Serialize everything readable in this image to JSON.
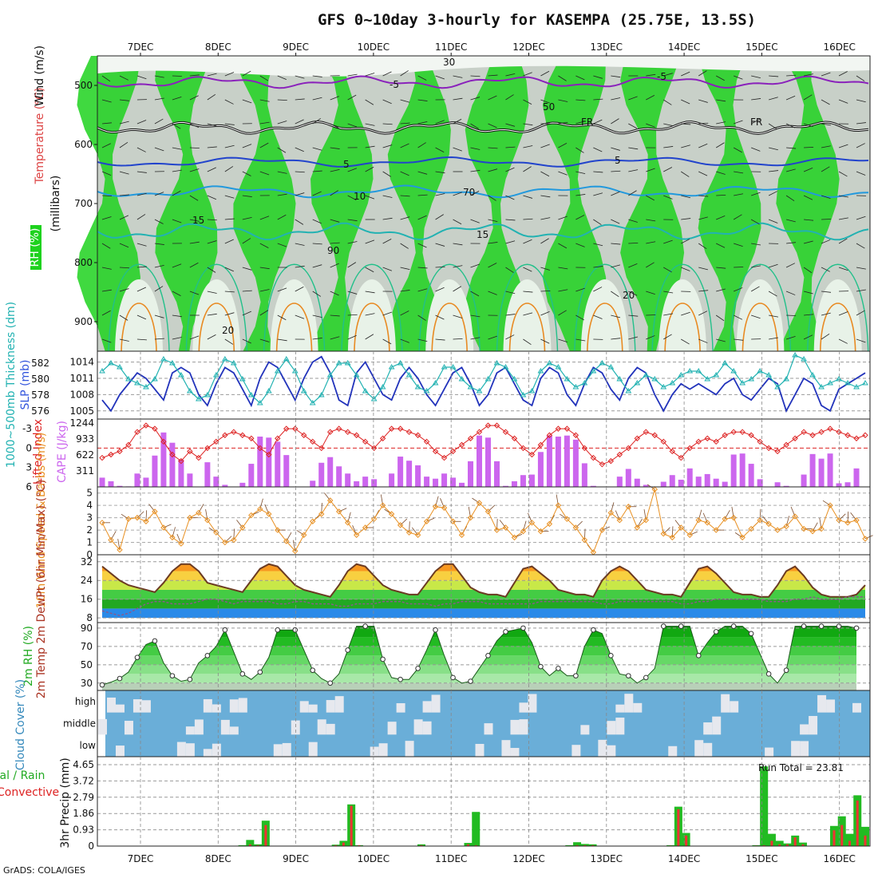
{
  "title": "GFS 0~10day 3-hourly for KASEMPA (25.75E, 13.5S)",
  "credit": "GrADS: COLA/IGES",
  "dates": [
    "7DEC",
    "8DEC",
    "9DEC",
    "10DEC",
    "11DEC",
    "12DEC",
    "13DEC",
    "14DEC",
    "15DEC",
    "16DEC"
  ],
  "colors": {
    "rh_green": "#1ed21e",
    "rh_bright": "#00ee00",
    "rh_light": "#e8f2e8",
    "rh_gray": "#c8d0c8",
    "slp": "#2233bb",
    "thickness": "#22b2b2",
    "lifted": "#dd2222",
    "cape": "#cc66ee",
    "wind": "#e89022",
    "barb": "#7a4a2a",
    "temp_line": "#6b3a22",
    "dewpt": "#8b5a8b",
    "cloud": "#6aaed8",
    "precip_total": "#22bb22",
    "precip_conv": "#ee3333"
  },
  "chart_data": [
    {
      "type": "heatmap",
      "name_label": "RH (%)",
      "ylabels": [
        "Temperature (°C)",
        "Wind (m/s)",
        "(millibars)"
      ],
      "y_ticks": [
        500,
        600,
        700,
        800,
        900
      ],
      "ylim": [
        950,
        450
      ],
      "contour_labels": [
        "-5",
        "FR",
        "5",
        "10",
        "15",
        "20",
        "30",
        "50",
        "70",
        "90"
      ]
    },
    {
      "type": "line",
      "ylabel_left": "1000~500mb Thickness (dm)",
      "ylabel_right": "SLP (mb)",
      "y_ticks_left": [
        576,
        578,
        580,
        582
      ],
      "y_ticks_right": [
        1005,
        1008,
        1011,
        1014
      ],
      "series": [
        {
          "name": "SLP",
          "values": [
            1007,
            1005,
            1008,
            1010,
            1012,
            1011,
            1009,
            1007,
            1012,
            1013,
            1012,
            1008,
            1006,
            1010,
            1013,
            1012,
            1009,
            1006,
            1011,
            1014,
            1013,
            1010,
            1007,
            1011,
            1014,
            1015,
            1012,
            1007,
            1006,
            1012,
            1014,
            1011,
            1008,
            1007,
            1011,
            1013,
            1011,
            1008,
            1006,
            1009,
            1012,
            1013,
            1010,
            1006,
            1008,
            1012,
            1013,
            1010,
            1007,
            1006,
            1011,
            1013,
            1012,
            1008,
            1006,
            1010,
            1013,
            1012,
            1009,
            1007,
            1011,
            1013,
            1012,
            1008,
            1005,
            1008,
            1010,
            1009,
            1010,
            1009,
            1008,
            1010,
            1011,
            1008,
            1007,
            1009,
            1011,
            1010,
            1005,
            1008,
            1011,
            1010,
            1006,
            1005,
            1009,
            1010,
            1011,
            1012
          ]
        },
        {
          "name": "Thickness",
          "values": [
            581.0,
            582.0,
            581.5,
            580.0,
            579.5,
            579.0,
            580.0,
            582.5,
            582.0,
            580.5,
            578.5,
            577.5,
            578.0,
            580.5,
            582.5,
            582.0,
            580.0,
            578.0,
            577.0,
            578.5,
            581.0,
            582.5,
            581.0,
            578.5,
            577.0,
            578.0,
            580.5,
            582.0,
            582.0,
            580.5,
            578.5,
            577.5,
            579.0,
            581.5,
            582.0,
            580.5,
            579.0,
            578.5,
            579.5,
            581.5,
            581.5,
            580.0,
            579.0,
            578.5,
            580.0,
            582.0,
            581.5,
            580.0,
            578.0,
            578.5,
            581.0,
            582.0,
            581.5,
            580.0,
            579.0,
            579.5,
            581.0,
            582.0,
            581.5,
            580.0,
            578.5,
            579.5,
            580.5,
            580.0,
            579.0,
            579.5,
            580.5,
            581.0,
            581.0,
            580.0,
            580.5,
            582.0,
            581.0,
            579.5,
            580.0,
            581.0,
            580.5,
            579.0,
            580.0,
            583.0,
            582.5,
            580.5,
            579.0,
            579.5,
            580.0,
            579.5,
            579.0,
            579.5
          ]
        }
      ]
    },
    {
      "type": "bar",
      "ylabel_left": "Lifted Index",
      "ylabel_right": "CAPE (J/kg)",
      "y_ticks_left": [
        -3,
        0,
        3,
        6
      ],
      "y_ticks_right": [
        311,
        622,
        933,
        1244
      ],
      "series": [
        {
          "name": "CAPE",
          "values": [
            180,
            110,
            20,
            10,
            260,
            180,
            610,
            1060,
            860,
            530,
            260,
            0,
            480,
            200,
            40,
            0,
            80,
            450,
            980,
            960,
            880,
            620,
            0,
            0,
            120,
            470,
            580,
            400,
            260,
            110,
            200,
            150,
            0,
            260,
            590,
            510,
            420,
            200,
            160,
            260,
            180,
            80,
            500,
            1000,
            960,
            500,
            20,
            110,
            230,
            240,
            680,
            1000,
            980,
            1000,
            920,
            460,
            20,
            0,
            0,
            200,
            350,
            160,
            40,
            0,
            100,
            230,
            140,
            360,
            200,
            250,
            160,
            100,
            630,
            650,
            450,
            150,
            0,
            90,
            20,
            0,
            240,
            640,
            550,
            650,
            70,
            90,
            360,
            0,
            0,
            0
          ]
        },
        {
          "name": "Lifted Index",
          "values": [
            1.5,
            1.0,
            0.5,
            -0.5,
            -2.5,
            -3.5,
            -3.0,
            -1.0,
            1.0,
            2.0,
            0.5,
            1.5,
            0.0,
            -1.0,
            -2.0,
            -2.5,
            -2.0,
            -1.5,
            0.0,
            1.0,
            -1.5,
            -3.0,
            -3.0,
            -2.0,
            -1.0,
            0.0,
            -2.5,
            -3.0,
            -2.5,
            -2.0,
            -1.0,
            0.0,
            -1.5,
            -3.0,
            -3.0,
            -2.5,
            -2.0,
            -1.0,
            0.5,
            1.5,
            0.5,
            -0.5,
            -1.5,
            -2.5,
            -3.5,
            -3.5,
            -2.5,
            -1.5,
            0.0,
            1.0,
            -0.5,
            -2.0,
            -3.0,
            -3.0,
            -2.0,
            0.0,
            1.5,
            2.5,
            2.0,
            1.0,
            0.0,
            -1.5,
            -2.5,
            -2.0,
            -1.0,
            0.5,
            1.5,
            0.0,
            -1.0,
            -1.5,
            -1.0,
            -2.0,
            -2.5,
            -2.5,
            -2.0,
            -1.0,
            0.0,
            0.5,
            -0.5,
            -1.5,
            -2.5,
            -2.0,
            -2.5,
            -3.0,
            -2.5,
            -2.0,
            -1.5,
            -2.0
          ]
        }
      ]
    },
    {
      "type": "line",
      "ylabel": "10m Wind Speed & Barbs (m/s)",
      "y_ticks": [
        0,
        1,
        2,
        3,
        4,
        5
      ],
      "values": [
        2.6,
        1.2,
        0.4,
        2.9,
        3.0,
        2.7,
        3.5,
        2.2,
        1.4,
        0.9,
        3.0,
        3.4,
        2.8,
        1.8,
        1.0,
        1.2,
        2.2,
        3.2,
        3.7,
        3.3,
        2.0,
        1.1,
        0.3,
        1.6,
        2.7,
        3.3,
        4.4,
        3.5,
        2.6,
        1.6,
        2.2,
        2.9,
        4.0,
        3.3,
        2.4,
        1.8,
        1.6,
        2.7,
        3.9,
        3.8,
        2.7,
        1.6,
        3.0,
        4.2,
        3.5,
        2.0,
        2.2,
        1.4,
        1.9,
        2.6,
        1.9,
        2.5,
        4.0,
        2.9,
        2.2,
        1.2,
        0.2,
        2.0,
        3.4,
        2.8,
        3.9,
        2.2,
        2.8,
        5.3,
        1.7,
        1.4,
        2.2,
        1.6,
        2.8,
        2.6,
        2.0,
        2.9,
        3.0,
        1.4,
        2.1,
        2.8,
        2.5,
        2.0,
        2.3,
        3.1,
        2.1,
        1.9,
        2.1,
        4.0,
        2.8,
        2.6,
        2.8,
        1.3
      ]
    },
    {
      "type": "area",
      "ylabel": "2m Temp 2m DewPt (6hr Min/Max) (°C)",
      "y_ticks": [
        8,
        16,
        24,
        32
      ],
      "series": [
        {
          "name": "Temp",
          "values": [
            30,
            27,
            24,
            22,
            21,
            20,
            19,
            23,
            28,
            31,
            31,
            28,
            23,
            22,
            21,
            20,
            19,
            24,
            29,
            31,
            30,
            26,
            22,
            20,
            19,
            18,
            17,
            22,
            28,
            31,
            30,
            26,
            22,
            20,
            19,
            18,
            18,
            23,
            28,
            31,
            31,
            26,
            21,
            19,
            18,
            18,
            17,
            23,
            29,
            30,
            27,
            24,
            20,
            19,
            18,
            18,
            17,
            24,
            28,
            30,
            28,
            24,
            20,
            19,
            18,
            18,
            17,
            23,
            29,
            30,
            27,
            23,
            19,
            18,
            18,
            17,
            17,
            22,
            28,
            30,
            26,
            21,
            18,
            17,
            17,
            17,
            18,
            22
          ]
        },
        {
          "name": "DewPt",
          "values": [
            11,
            10,
            9,
            10,
            12,
            14,
            15,
            15,
            14,
            14,
            14,
            15,
            16,
            16,
            15,
            14,
            15,
            15,
            15,
            15,
            14,
            14,
            15,
            15,
            14,
            14,
            14,
            13,
            13,
            14,
            14,
            14,
            15,
            15,
            15,
            14,
            14,
            14,
            13,
            14,
            14,
            15,
            15,
            15,
            14,
            14,
            14,
            14,
            14,
            14,
            15,
            15,
            15,
            15,
            15,
            15,
            15,
            14,
            14,
            15,
            15,
            15,
            15,
            15,
            15,
            15,
            14,
            14,
            15,
            15,
            16,
            16,
            16,
            16,
            16,
            16,
            15,
            15,
            15,
            16,
            16,
            17,
            16,
            16,
            16,
            17,
            17,
            17
          ]
        }
      ]
    },
    {
      "type": "area",
      "ylabel": "2m RH (%)",
      "y_ticks": [
        30,
        50,
        70,
        90
      ],
      "values": [
        28,
        31,
        35,
        42,
        58,
        72,
        76,
        52,
        38,
        32,
        34,
        52,
        60,
        70,
        88,
        64,
        40,
        34,
        42,
        58,
        88,
        88,
        88,
        66,
        44,
        35,
        30,
        40,
        66,
        92,
        92,
        92,
        56,
        36,
        34,
        34,
        46,
        66,
        88,
        60,
        36,
        30,
        32,
        46,
        60,
        76,
        86,
        88,
        90,
        74,
        48,
        38,
        46,
        38,
        38,
        70,
        88,
        84,
        60,
        40,
        38,
        30,
        36,
        46,
        92,
        92,
        92,
        92,
        60,
        74,
        86,
        92,
        92,
        92,
        84,
        62,
        40,
        30,
        44,
        92,
        92,
        92,
        92,
        92,
        92,
        92,
        90
      ]
    },
    {
      "type": "heatmap",
      "ylabel": "Cloud Cover (%)",
      "y_tick_labels": [
        "high",
        "middle",
        "low"
      ]
    },
    {
      "type": "bar",
      "ylabel": "3hr Precip (mm)",
      "legend_left": "Total / Rain Convective",
      "y_ticks": [
        0,
        0.93,
        1.86,
        2.79,
        3.72,
        4.65
      ],
      "run_total_label": "Run Total = 23.81",
      "series": [
        {
          "name": "Total",
          "values": [
            0,
            0,
            0,
            0,
            0,
            0,
            0,
            0,
            0,
            0,
            0,
            0,
            0,
            0,
            0,
            0,
            0,
            0,
            0.05,
            0.35,
            0.1,
            1.45,
            0,
            0,
            0,
            0,
            0,
            0,
            0,
            0,
            0.08,
            0.3,
            2.38,
            0.05,
            0,
            0,
            0,
            0,
            0,
            0,
            0,
            0.1,
            0,
            0,
            0,
            0,
            0,
            0.18,
            1.95,
            0,
            0,
            0,
            0,
            0,
            0,
            0,
            0,
            0,
            0,
            0,
            0.05,
            0.22,
            0.12,
            0.1,
            0,
            0,
            0,
            0,
            0,
            0,
            0,
            0,
            0,
            0.05,
            2.25,
            0.75,
            0,
            0,
            0,
            0,
            0,
            0,
            0,
            0,
            0.05,
            4.55,
            0.7,
            0.3,
            0.15,
            0.6,
            0.2,
            0,
            0,
            0,
            1.15,
            1.7,
            0.7,
            2.9,
            1.1
          ]
        },
        {
          "name": "Convective",
          "values": [
            0,
            0,
            0,
            0,
            0,
            0,
            0,
            0,
            0,
            0,
            0,
            0,
            0,
            0,
            0,
            0,
            0,
            0,
            0.02,
            0.1,
            0.05,
            1.2,
            0,
            0,
            0,
            0,
            0,
            0,
            0,
            0,
            0.05,
            0.2,
            2.3,
            0.05,
            0,
            0,
            0,
            0,
            0,
            0,
            0,
            0.05,
            0,
            0,
            0,
            0,
            0,
            0.1,
            0.05,
            0,
            0,
            0,
            0,
            0,
            0,
            0,
            0,
            0,
            0,
            0,
            0.02,
            0.05,
            0.05,
            0.05,
            0,
            0,
            0,
            0,
            0,
            0,
            0,
            0,
            0,
            0.03,
            2.1,
            0.6,
            0,
            0,
            0,
            0,
            0,
            0,
            0,
            0,
            0.03,
            0.05,
            0.3,
            0.1,
            0.1,
            0.5,
            0.1,
            0,
            0,
            0,
            0.9,
            1.2,
            0.3,
            2.6,
            0.6
          ]
        }
      ]
    }
  ]
}
